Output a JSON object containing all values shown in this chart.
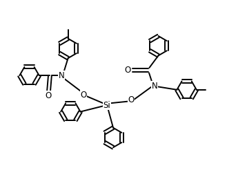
{
  "background": "#ffffff",
  "line_color": "#000000",
  "line_width": 1.4,
  "r": 0.38,
  "figw": 3.58,
  "figh": 2.82,
  "dpi": 100,
  "xlim": [
    0,
    9.5
  ],
  "ylim": [
    0,
    7.4
  ]
}
